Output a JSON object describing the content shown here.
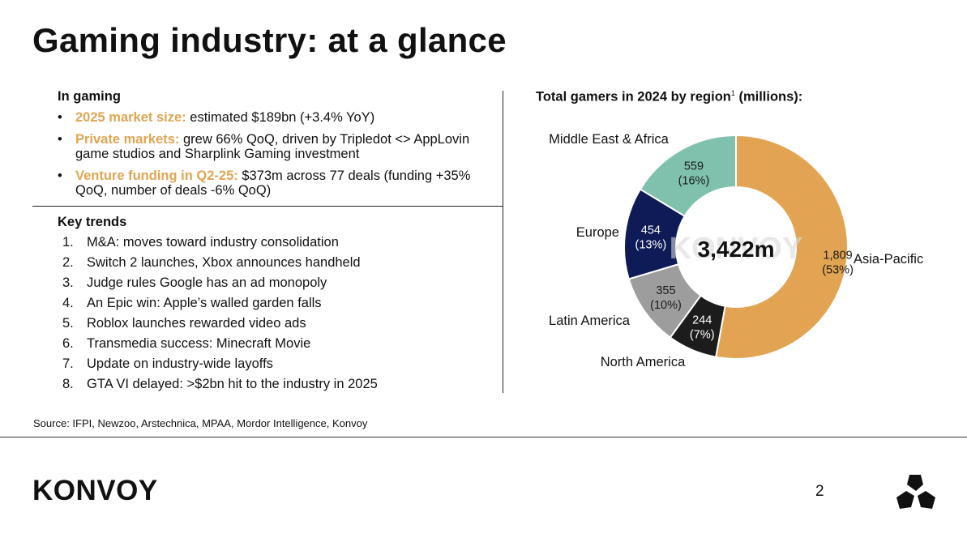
{
  "title": "Gaming industry: at a glance",
  "in_gaming": {
    "heading": "In gaming",
    "bullets": [
      {
        "highlight": "2025 market size:",
        "text": " estimated $189bn (+3.4% YoY)"
      },
      {
        "highlight": "Private markets:",
        "text": " grew 66% QoQ, driven by Tripledot <> AppLovin game studios and Sharplink Gaming investment"
      },
      {
        "highlight": "Venture funding in Q2-25:",
        "text": " $373m across 77 deals (funding +35% QoQ, number of deals -6% QoQ)"
      }
    ]
  },
  "key_trends": {
    "heading": "Key trends",
    "items": [
      {
        "num": "1.",
        "text": "M&A: moves toward industry consolidation"
      },
      {
        "num": "2.",
        "text": "Switch 2 launches, Xbox announces handheld"
      },
      {
        "num": "3.",
        "text": "Judge rules Google has an ad monopoly"
      },
      {
        "num": "4.",
        "text": "An Epic win: Apple’s walled garden falls"
      },
      {
        "num": "5.",
        "text": "Roblox launches rewarded video ads"
      },
      {
        "num": "6.",
        "text": "Transmedia success: Minecraft Movie"
      },
      {
        "num": "7.",
        "text": "Update on industry-wide layoffs"
      },
      {
        "num": "8.",
        "text": "GTA VI delayed: >$2bn hit to the industry in 2025"
      }
    ]
  },
  "source": "Source: IFPI, Newzoo, Arstechnica, MPAA, Mordor Intelligence, Konvoy",
  "footer": {
    "logo": "KONVOY",
    "page": "2"
  },
  "colors": {
    "accent": "#e0a552",
    "asia": "#e2a452",
    "north_america": "#1c1c1c",
    "latin_america": "#9d9d9d",
    "europe": "#0e1b57",
    "mea": "#7fc1ad"
  },
  "chart_data": {
    "type": "pie",
    "title": "Total gamers in 2024 by region",
    "title_sup": "1",
    "title_suffix": " (millions):",
    "center_label": "3,422m",
    "watermark": "KONVOY",
    "slices": [
      {
        "name": "Asia-Pacific",
        "value": 1809,
        "value_label": "1,809",
        "pct_label": "(53%)",
        "color": "#e2a452"
      },
      {
        "name": "North America",
        "value": 244,
        "value_label": "244",
        "pct_label": "(7%)",
        "color": "#1c1c1c"
      },
      {
        "name": "Latin America",
        "value": 355,
        "value_label": "355",
        "pct_label": "(10%)",
        "color": "#9d9d9d"
      },
      {
        "name": "Europe",
        "value": 454,
        "value_label": "454",
        "pct_label": "(13%)",
        "color": "#0e1b57"
      },
      {
        "name": "Middle East & Africa",
        "value": 559,
        "value_label": "559",
        "pct_label": "(16%)",
        "color": "#7fc1ad"
      }
    ]
  }
}
